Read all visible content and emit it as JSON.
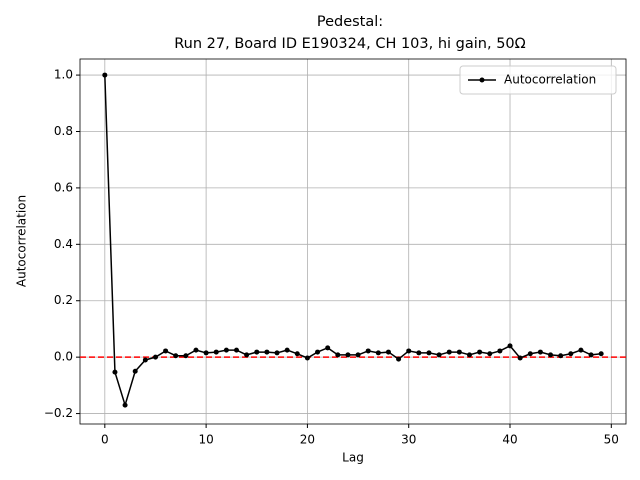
{
  "chart_data": {
    "type": "line",
    "title": [
      "Pedestal:",
      "Run 27, Board ID E190324, CH 103, hi gain, 50Ω"
    ],
    "xlabel": "Lag",
    "ylabel": "Autocorrelation",
    "x": [
      0,
      1,
      2,
      3,
      4,
      5,
      6,
      7,
      8,
      9,
      10,
      11,
      12,
      13,
      14,
      15,
      16,
      17,
      18,
      19,
      20,
      21,
      22,
      23,
      24,
      25,
      26,
      27,
      28,
      29,
      30,
      31,
      32,
      33,
      34,
      35,
      36,
      37,
      38,
      39,
      40,
      41,
      42,
      43,
      44,
      45,
      46,
      47,
      48,
      49
    ],
    "series": [
      {
        "name": "Autocorrelation",
        "color": "#000000",
        "values": [
          1.0,
          -0.053,
          -0.17,
          -0.05,
          -0.01,
          0.0,
          0.022,
          0.005,
          0.005,
          0.025,
          0.015,
          0.018,
          0.025,
          0.025,
          0.008,
          0.018,
          0.018,
          0.015,
          0.025,
          0.012,
          -0.003,
          0.018,
          0.033,
          0.008,
          0.008,
          0.008,
          0.022,
          0.015,
          0.018,
          -0.007,
          0.022,
          0.015,
          0.015,
          0.008,
          0.018,
          0.018,
          0.008,
          0.018,
          0.012,
          0.022,
          0.04,
          -0.003,
          0.012,
          0.018,
          0.008,
          0.005,
          0.012,
          0.025,
          0.008,
          0.012
        ]
      }
    ],
    "hline": {
      "value": 0,
      "color": "#ff0000"
    },
    "xlim": [
      -2.45,
      51.45
    ],
    "xticks": [
      0,
      10,
      20,
      30,
      40,
      50
    ],
    "ylim": [
      -0.237,
      1.057
    ],
    "yticks": [
      {
        "value": -0.2,
        "label": "−0.2"
      },
      {
        "value": 0,
        "label": "0.0"
      },
      0.2,
      0.4,
      0.6,
      0.8,
      {
        "value": 1,
        "label": "1.0"
      }
    ],
    "grid": true,
    "legend": "upper-right"
  }
}
